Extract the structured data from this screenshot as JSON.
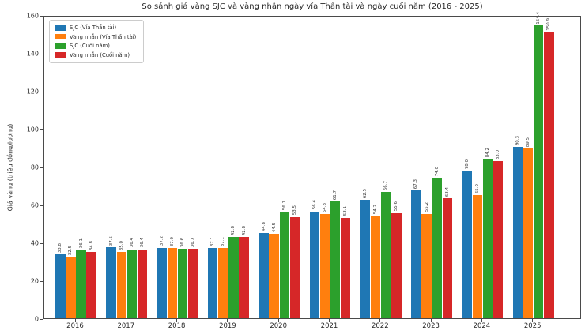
{
  "figure": {
    "background": "#ffffff",
    "axis_color": "#4a4a4a"
  },
  "chart_data": {
    "type": "bar",
    "title": "So sánh giá vàng SJC và vàng nhẫn ngày vía Thần tài và ngày cuối năm (2016 - 2025)",
    "ylabel": "Giá vàng (triệu đồng/lượng)",
    "xlabel": "",
    "categories": [
      "2016",
      "2017",
      "2018",
      "2019",
      "2020",
      "2021",
      "2022",
      "2023",
      "2024",
      "2025"
    ],
    "series": [
      {
        "name": "SJC (Vía Thần tài)",
        "key": "sjc-via-than-tai",
        "color": "#1f77b4",
        "values": [
          33.8,
          37.5,
          37.2,
          37.1,
          44.8,
          56.4,
          62.5,
          67.3,
          78.0,
          90.3
        ]
      },
      {
        "name": "Vàng nhẫn (Vía Thần tài)",
        "key": "vang-nhan-via-than-tai",
        "color": "#ff7f0e",
        "values": [
          32.5,
          35.0,
          37.0,
          37.1,
          44.5,
          54.8,
          54.2,
          55.2,
          65.0,
          89.5
        ]
      },
      {
        "name": "SJC (Cuối năm)",
        "key": "sjc-cuoi-nam",
        "color": "#2ca02c",
        "values": [
          36.1,
          36.4,
          36.6,
          42.8,
          56.1,
          61.7,
          66.7,
          74.0,
          84.2,
          154.4
        ]
      },
      {
        "name": "Vàng nhẫn (Cuối năm)",
        "key": "vang-nhan-cuoi-nam",
        "color": "#d62728",
        "values": [
          34.8,
          36.4,
          36.7,
          42.8,
          53.5,
          53.1,
          55.6,
          63.4,
          83.0,
          150.9
        ]
      }
    ],
    "ylim": [
      0,
      160
    ],
    "yticks": [
      0,
      20,
      40,
      60,
      80,
      100,
      120,
      140,
      160
    ],
    "grid": false,
    "legend_position": "upper-left",
    "value_label_decimals": 1
  }
}
